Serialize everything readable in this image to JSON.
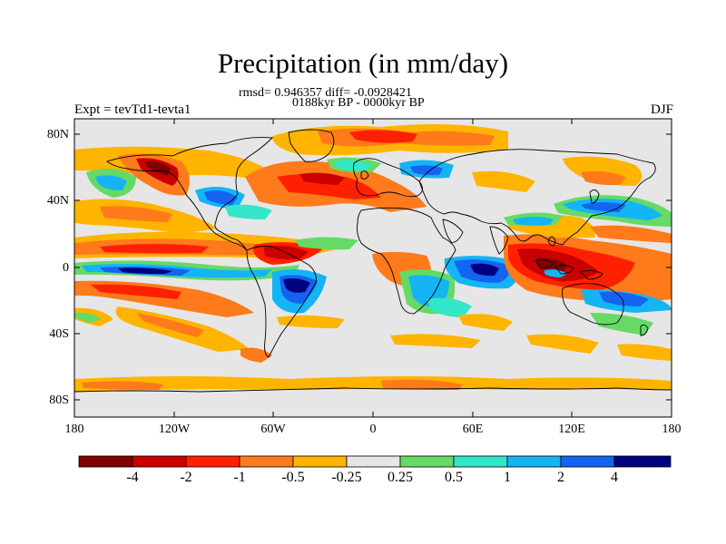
{
  "title": "Precipitation (in mm/day)",
  "stats_line": "rmsd= 0.946357 diff= -0.0928421",
  "period_line": "0188kyr BP - 0000kyr BP",
  "experiment": "Expt = tevTd1-tevta1",
  "season": "DJF",
  "map": {
    "projection": "cylindrical-equidistant",
    "lon_range": [
      -180,
      180
    ],
    "lat_range": [
      -90,
      90
    ],
    "lat_tick_labels": [
      "80N",
      "40N",
      "0",
      "40S",
      "80S"
    ],
    "lon_tick_labels": [
      "180",
      "120W",
      "60W",
      "0",
      "60E",
      "120E",
      "180"
    ]
  },
  "colorbar": {
    "colors": [
      "#7f0000",
      "#c80000",
      "#ff2000",
      "#ff7a1a",
      "#ffb400",
      "#e6e6e6",
      "#66d966",
      "#33e6c8",
      "#14b4f5",
      "#1464f0",
      "#000080"
    ],
    "labels": [
      "-4",
      "-2",
      "-1",
      "-0.5",
      "-0.25",
      "0.25",
      "0.5",
      "1",
      "2",
      "4"
    ]
  }
}
